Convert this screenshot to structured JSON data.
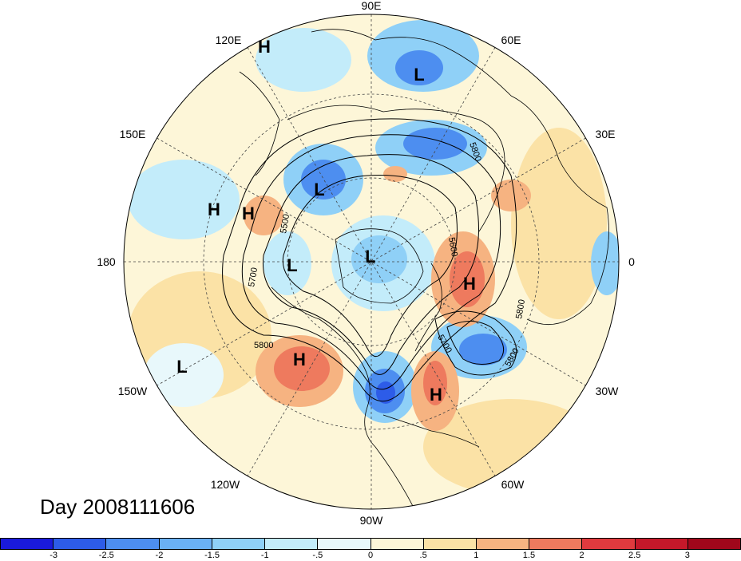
{
  "title": "Day 2008111606",
  "map": {
    "projection": "north-polar-stereographic",
    "longitude_labels": [
      "90E",
      "60E",
      "30E",
      "0",
      "30W",
      "60W",
      "90W",
      "120W",
      "150W",
      "180",
      "150E",
      "120E"
    ],
    "highs_lows": [
      {
        "type": "H",
        "label": "H"
      },
      {
        "type": "H",
        "label": "H"
      },
      {
        "type": "H",
        "label": "H"
      },
      {
        "type": "H",
        "label": "H"
      },
      {
        "type": "H",
        "label": "H"
      },
      {
        "type": "H",
        "label": "H"
      },
      {
        "type": "L",
        "label": "L"
      },
      {
        "type": "L",
        "label": "L"
      },
      {
        "type": "L",
        "label": "L"
      },
      {
        "type": "L",
        "label": "L"
      },
      {
        "type": "L",
        "label": "L"
      }
    ],
    "contour_labels": [
      "5500",
      "5600",
      "5700",
      "5700",
      "5800",
      "5800",
      "5800",
      "5800"
    ]
  },
  "colorbar": {
    "tick_labels": [
      "-3",
      "-2.5",
      "-2",
      "-1.5",
      "-1",
      "-.5",
      "0",
      ".5",
      "1",
      "1.5",
      "2",
      "2.5",
      "3"
    ],
    "colors": [
      "#1a1adb",
      "#2d5ce8",
      "#4d8ef0",
      "#6ab0f4",
      "#8fd0f7",
      "#c3ecfa",
      "#e8f8fb",
      "#fdf6d8",
      "#fbe2a6",
      "#f6b381",
      "#ee7a5e",
      "#e03a3e",
      "#c4182a",
      "#a0071b"
    ]
  },
  "colors": {
    "background": "#ffffff",
    "neutral_fill": "#fdf6d8",
    "land_line": "#000000"
  }
}
